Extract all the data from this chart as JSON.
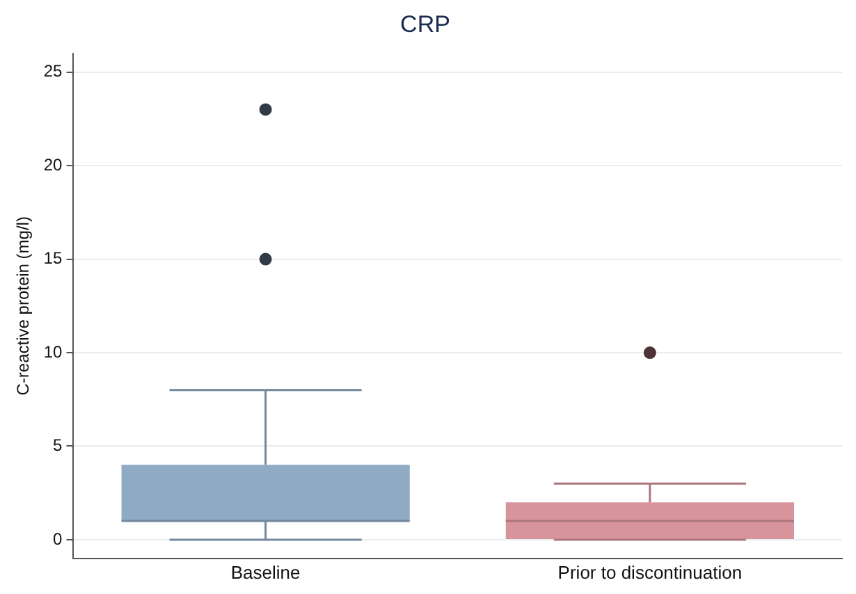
{
  "chart_data": {
    "type": "box",
    "title": "CRP",
    "ylabel": "C-reactive protein (mg/l)",
    "categories": [
      "Baseline",
      "Prior to discontinuation"
    ],
    "boxes": [
      {
        "low": 0,
        "q1": 1,
        "median": 1,
        "q3": 4,
        "high": 8,
        "outliers": [
          15,
          23
        ]
      },
      {
        "low": 0,
        "q1": 0,
        "median": 1,
        "q3": 2,
        "high": 3,
        "outliers": [
          10
        ]
      }
    ],
    "colors": [
      "#90aac4",
      "#d8949c"
    ],
    "ylim": [
      -1,
      26
    ],
    "yticks": [
      0,
      5,
      10,
      15,
      20,
      25
    ],
    "grid": "y",
    "legend": false
  }
}
